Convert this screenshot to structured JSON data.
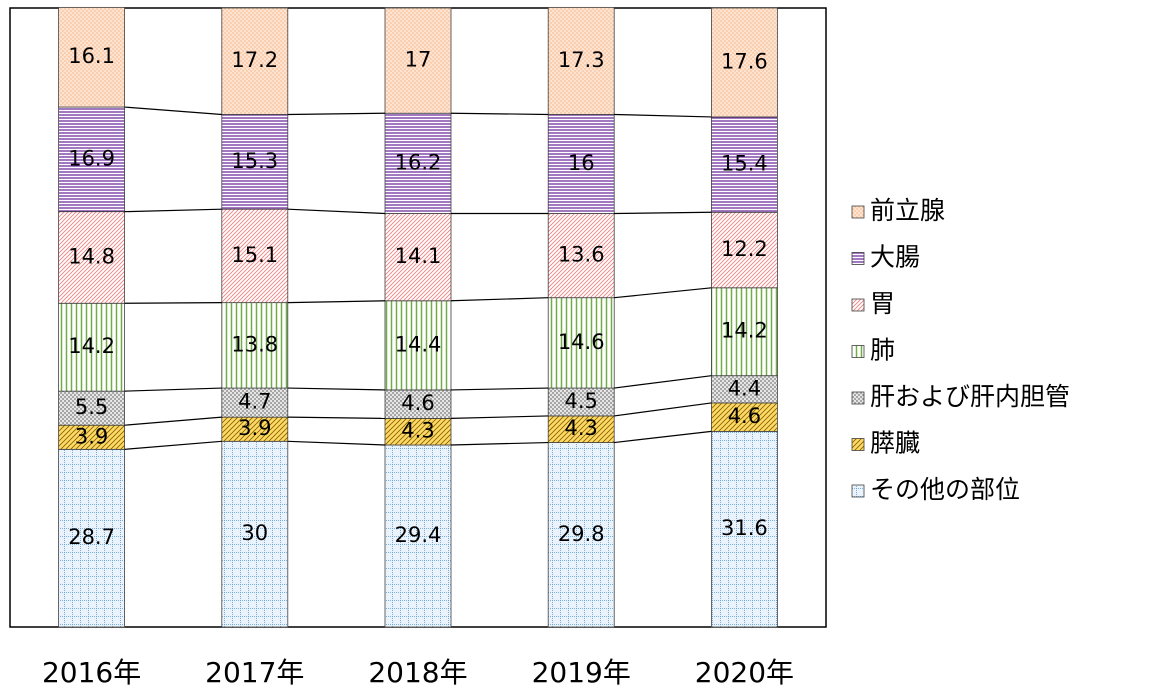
{
  "chart_data": {
    "type": "stacked_bar",
    "categories": [
      "2016年",
      "2017年",
      "2018年",
      "2019年",
      "2020年"
    ],
    "ylim": [
      0,
      100
    ],
    "series": [
      {
        "name": "その他の部位",
        "color": "#5b9bd5",
        "pattern": "grid",
        "values": [
          28.7,
          30.0,
          29.4,
          29.8,
          31.6
        ]
      },
      {
        "name": "膵臓",
        "color": "#ffd966",
        "pattern": "diagonal-fill",
        "values": [
          3.9,
          3.9,
          4.3,
          4.3,
          4.6
        ]
      },
      {
        "name": "肝および肝内胆管",
        "color": "#a6a6a6",
        "pattern": "checker",
        "values": [
          5.5,
          4.7,
          4.6,
          4.5,
          4.4
        ]
      },
      {
        "name": "肺",
        "color": "#70ad47",
        "pattern": "vertical",
        "values": [
          14.2,
          13.8,
          14.4,
          14.6,
          14.2
        ]
      },
      {
        "name": "胃",
        "color": "#f08080",
        "pattern": "diagonal",
        "values": [
          14.8,
          15.1,
          14.1,
          13.6,
          12.2
        ]
      },
      {
        "name": "大腸",
        "color": "#7030a0",
        "pattern": "horizontal",
        "values": [
          16.9,
          15.3,
          16.2,
          16.0,
          15.4
        ]
      },
      {
        "name": "前立腺",
        "color": "#f4b183",
        "pattern": "dots",
        "values": [
          16.1,
          17.2,
          17.0,
          17.3,
          17.6
        ]
      }
    ],
    "legend": "right"
  }
}
